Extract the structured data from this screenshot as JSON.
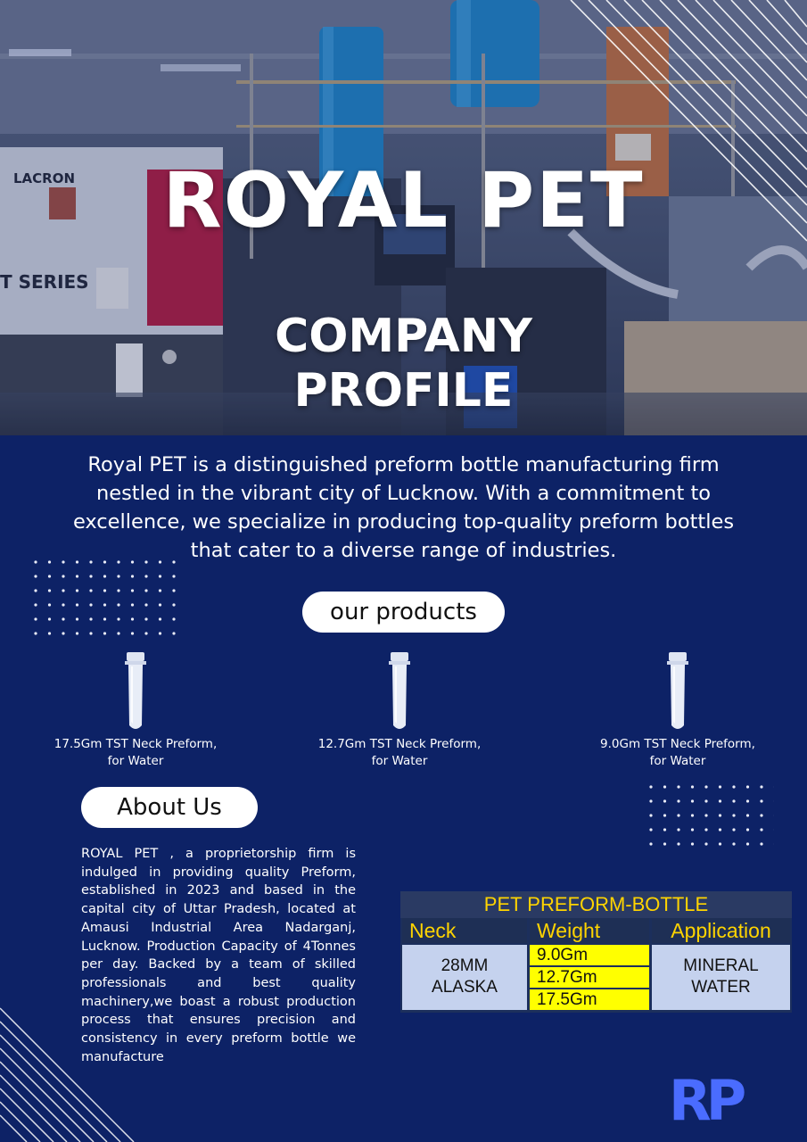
{
  "hero": {
    "title": "ROYAL PET",
    "subtitle_line1": "COMPANY",
    "subtitle_line2": "PROFILE",
    "machine_text": "LACRON",
    "machine_series": "T SERIES"
  },
  "intro": "Royal PET is a distinguished preform bottle manufacturing firm nestled in the vibrant city of Lucknow. With a commitment to excellence, we specialize in producing top-quality preform bottles that cater to a diverse range of industries.",
  "products": {
    "heading": "our products",
    "items": [
      {
        "line1": "17.5Gm TST Neck Preform,",
        "line2": "for Water"
      },
      {
        "line1": "12.7Gm TST Neck Preform,",
        "line2": "for Water"
      },
      {
        "line1": "9.0Gm TST Neck Preform,",
        "line2": "for Water"
      }
    ]
  },
  "about": {
    "heading": "About Us",
    "text": "ROYAL PET , a proprietorship firm is indulged in providing quality Preform, established in 2023 and based in the capital city of Uttar Pradesh, located at Amausi Industrial Area Nadarganj, Lucknow. Production Capacity of 4Tonnes per day. Backed by a team of skilled professionals and best quality machinery,we boast a robust production process that ensures precision and consistency in every preform bottle we manufacture"
  },
  "spec_table": {
    "title": "PET PREFORM-BOTTLE",
    "headers": {
      "neck": "Neck",
      "weight": "Weight",
      "application": "Application"
    },
    "neck_line1": "28MM",
    "neck_line2": "ALASKA",
    "weights": [
      "9.0Gm",
      "12.7Gm",
      "17.5Gm"
    ],
    "application_line1": "MINERAL",
    "application_line2": "WATER",
    "colors": {
      "title": "#ffd400",
      "weight_bg": "#ffff00",
      "cell_bg": "#c5d2ee"
    }
  },
  "logo": {
    "text": "RP"
  },
  "colors": {
    "background": "#0d2266",
    "accent": "#4a6cff"
  }
}
